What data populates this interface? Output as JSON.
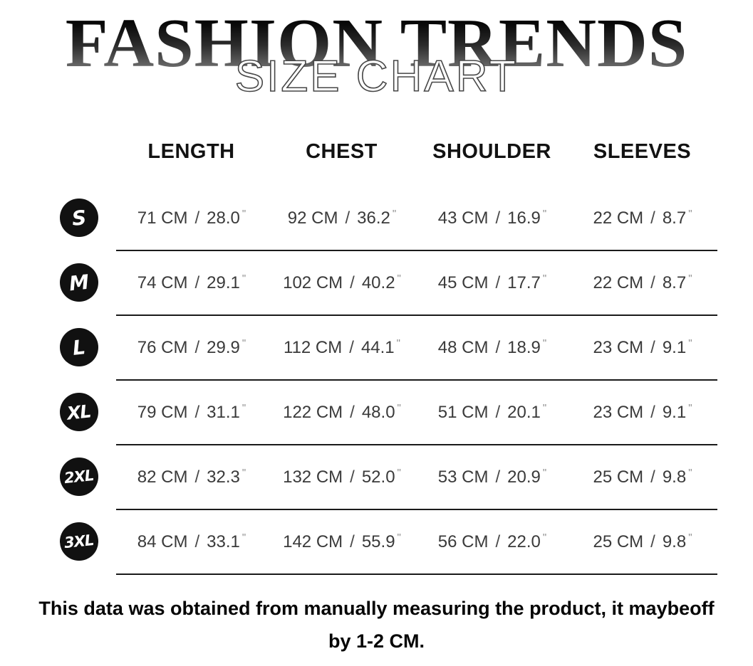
{
  "page": {
    "title": "FASHION TRENDS",
    "subtitle": "SIZE CHART"
  },
  "table": {
    "headers": [
      "LENGTH",
      "CHEST",
      "SHOULDER",
      "SLEEVES"
    ],
    "separator": "/",
    "inch_mark": "\"",
    "rows": [
      {
        "size": "S",
        "cells": [
          {
            "cm": "71 CM",
            "in": "28.0"
          },
          {
            "cm": "92 CM",
            "in": "36.2"
          },
          {
            "cm": "43 CM",
            "in": "16.9"
          },
          {
            "cm": "22 CM",
            "in": "8.7"
          }
        ]
      },
      {
        "size": "M",
        "cells": [
          {
            "cm": "74 CM",
            "in": "29.1"
          },
          {
            "cm": "102 CM",
            "in": "40.2"
          },
          {
            "cm": "45 CM",
            "in": "17.7"
          },
          {
            "cm": "22 CM",
            "in": "8.7"
          }
        ]
      },
      {
        "size": "L",
        "cells": [
          {
            "cm": "76 CM",
            "in": "29.9"
          },
          {
            "cm": "112 CM",
            "in": "44.1"
          },
          {
            "cm": "48 CM",
            "in": "18.9"
          },
          {
            "cm": "23 CM",
            "in": "9.1"
          }
        ]
      },
      {
        "size": "XL",
        "cells": [
          {
            "cm": "79 CM",
            "in": "31.1"
          },
          {
            "cm": "122 CM",
            "in": "48.0"
          },
          {
            "cm": "51 CM",
            "in": "20.1"
          },
          {
            "cm": "23 CM",
            "in": "9.1"
          }
        ]
      },
      {
        "size": "2XL",
        "cells": [
          {
            "cm": "82 CM",
            "in": "32.3"
          },
          {
            "cm": "132 CM",
            "in": "52.0"
          },
          {
            "cm": "53 CM",
            "in": "20.9"
          },
          {
            "cm": "25 CM",
            "in": "9.8"
          }
        ]
      },
      {
        "size": "3XL",
        "cells": [
          {
            "cm": "84 CM",
            "in": "33.1"
          },
          {
            "cm": "142 CM",
            "in": "55.9"
          },
          {
            "cm": "56 CM",
            "in": "22.0"
          },
          {
            "cm": "25 CM",
            "in": "9.8"
          }
        ]
      }
    ]
  },
  "footer": {
    "line1": "This data was obtained from manually measuring the product, it maybeoff",
    "line2": "by 1-2 CM."
  },
  "colors": {
    "badge_bg": "#111111",
    "badge_text": "#ffffff",
    "divider": "#1a1a1a",
    "title_gradient_top": "#030303",
    "title_gradient_bottom": "#8f8f8f",
    "subtitle_fill": "#ffffff",
    "subtitle_outline": "#474747"
  }
}
